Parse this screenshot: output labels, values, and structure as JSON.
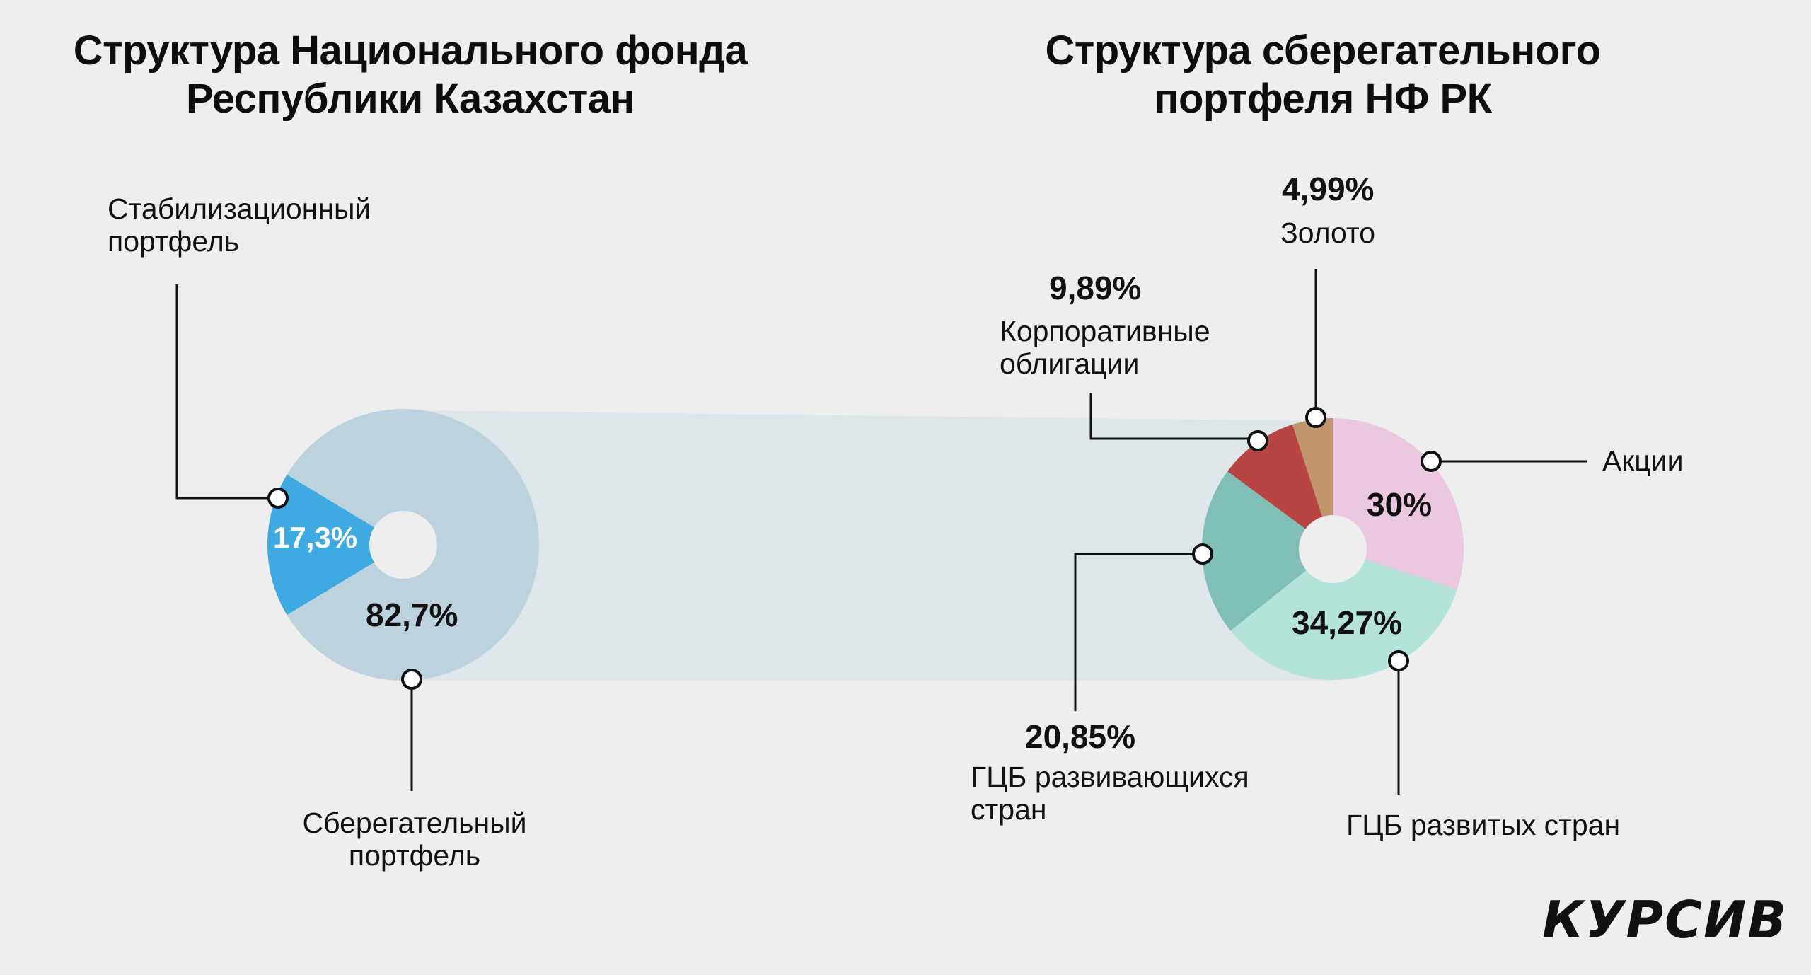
{
  "titles": {
    "left": [
      "Структура Национального фонда",
      "Республики Казахстан"
    ],
    "right": [
      "Структура сберегательного",
      "портфеля НФ РК"
    ]
  },
  "brand": "КУРСИВ",
  "colors": {
    "background": "#eeeeee",
    "stabilization": "#3fa9e2",
    "savings": "#bcd3de",
    "connector": "#dfe6ea",
    "shares": "#ecc8e0",
    "developed": "#b4e3da",
    "developing": "#80bfb5",
    "corporate": "#b84543",
    "gold": "#c0946c"
  },
  "chart_data": [
    {
      "type": "pie",
      "title": "Структура Национального фонда Республики Казахстан",
      "slices": [
        {
          "label": "Стабилизационный портфель",
          "label_lines": [
            "Стабилизационный",
            "портфель"
          ],
          "value": 17.3,
          "value_text": "17,3%",
          "color": "#3fa9e2"
        },
        {
          "label": "Сберегательный портфель",
          "label_lines": [
            "Сберегательный",
            "портфель"
          ],
          "value": 82.7,
          "value_text": "82,7%",
          "color": "#bcd3de"
        }
      ]
    },
    {
      "type": "pie",
      "title": "Структура сберегательного портфеля НФ РК",
      "slices": [
        {
          "label": "Акции",
          "label_lines": [
            "Акции"
          ],
          "value": 30,
          "value_text": "30%",
          "color": "#ecc8e0"
        },
        {
          "label": "ГЦБ развитых стран",
          "label_lines": [
            "ГЦБ развитых стран"
          ],
          "value": 34.27,
          "value_text": "34,27%",
          "color": "#b4e3da"
        },
        {
          "label": "ГЦБ развивающихся стран",
          "label_lines": [
            "ГЦБ развивающихся",
            "стран"
          ],
          "value": 20.85,
          "value_text": "20,85%",
          "color": "#80bfb5"
        },
        {
          "label": "Корпоративные облигации",
          "label_lines": [
            "Корпоративные",
            "облигации"
          ],
          "value": 9.89,
          "value_text": "9,89%",
          "color": "#b84543"
        },
        {
          "label": "Золото",
          "label_lines": [
            "Золото"
          ],
          "value": 4.99,
          "value_text": "4,99%",
          "color": "#c0946c"
        }
      ]
    }
  ]
}
